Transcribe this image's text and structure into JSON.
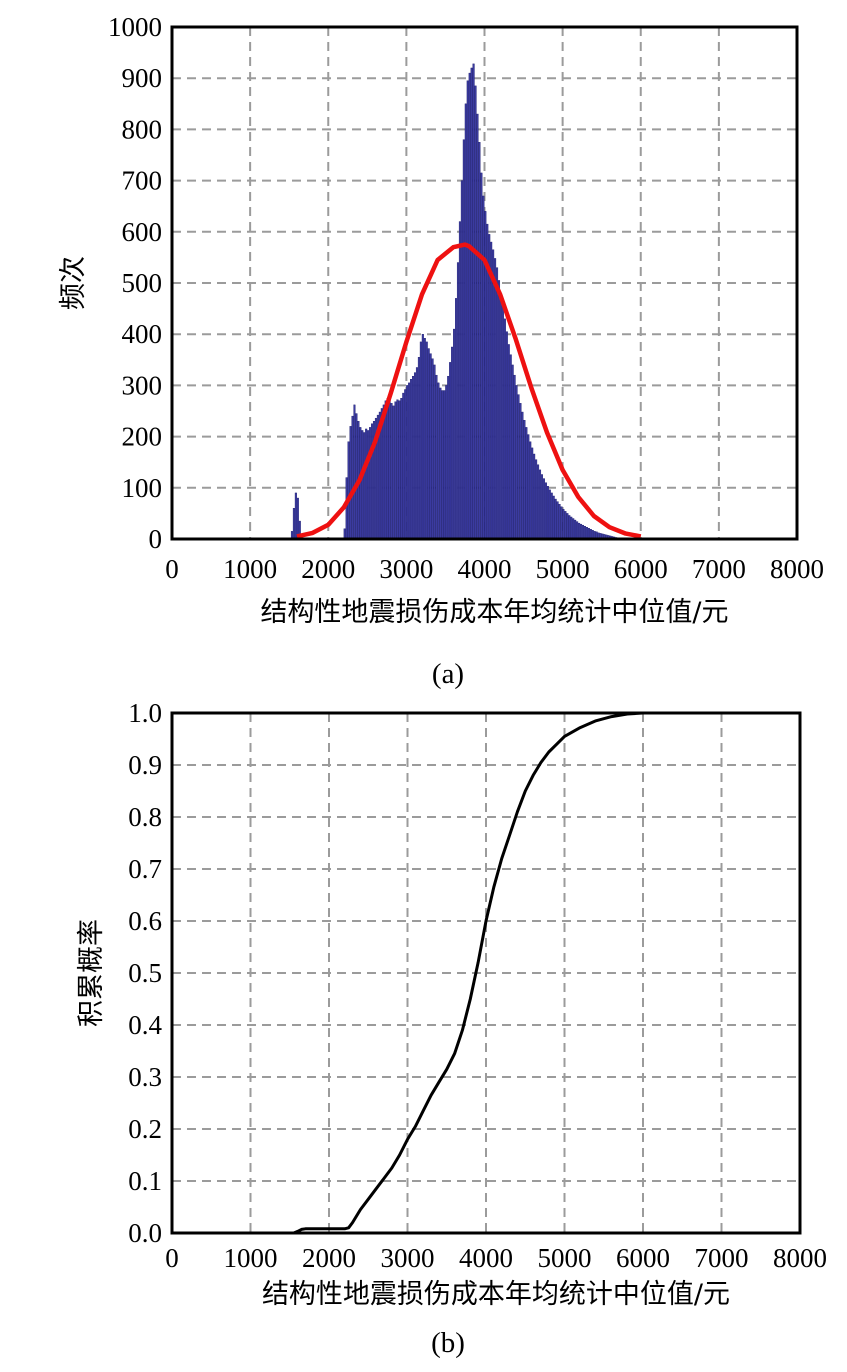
{
  "chart_data": [
    {
      "type": "bar",
      "panel_label": "(a)",
      "xlabel": "结构性地震损伤成本年均统计中位值/元",
      "ylabel": "频次",
      "xlim": [
        0,
        8000
      ],
      "ylim": [
        0,
        1000
      ],
      "xticks": [
        "0",
        "1000",
        "2000",
        "3000",
        "4000",
        "5000",
        "6000",
        "7000",
        "8000"
      ],
      "yticks": [
        "0",
        "100",
        "200",
        "300",
        "400",
        "500",
        "600",
        "700",
        "800",
        "900",
        "1000"
      ],
      "grid": true,
      "colors": {
        "bars": "#3b3ba0",
        "fit_curve": "#ee1111"
      },
      "histogram": {
        "bin_width": 25,
        "bins": [
          {
            "x": 1525,
            "y": 15
          },
          {
            "x": 1550,
            "y": 60
          },
          {
            "x": 1575,
            "y": 90
          },
          {
            "x": 1600,
            "y": 80
          },
          {
            "x": 1625,
            "y": 35
          },
          {
            "x": 2200,
            "y": 20
          },
          {
            "x": 2225,
            "y": 120
          },
          {
            "x": 2250,
            "y": 190
          },
          {
            "x": 2275,
            "y": 220
          },
          {
            "x": 2300,
            "y": 240
          },
          {
            "x": 2325,
            "y": 262
          },
          {
            "x": 2350,
            "y": 245
          },
          {
            "x": 2375,
            "y": 230
          },
          {
            "x": 2400,
            "y": 218
          },
          {
            "x": 2425,
            "y": 212
          },
          {
            "x": 2450,
            "y": 208
          },
          {
            "x": 2475,
            "y": 215
          },
          {
            "x": 2500,
            "y": 212
          },
          {
            "x": 2525,
            "y": 218
          },
          {
            "x": 2550,
            "y": 225
          },
          {
            "x": 2575,
            "y": 230
          },
          {
            "x": 2600,
            "y": 236
          },
          {
            "x": 2625,
            "y": 242
          },
          {
            "x": 2650,
            "y": 248
          },
          {
            "x": 2675,
            "y": 255
          },
          {
            "x": 2700,
            "y": 262
          },
          {
            "x": 2725,
            "y": 270
          },
          {
            "x": 2750,
            "y": 275
          },
          {
            "x": 2775,
            "y": 272
          },
          {
            "x": 2800,
            "y": 265
          },
          {
            "x": 2825,
            "y": 260
          },
          {
            "x": 2850,
            "y": 268
          },
          {
            "x": 2875,
            "y": 272
          },
          {
            "x": 2900,
            "y": 270
          },
          {
            "x": 2925,
            "y": 275
          },
          {
            "x": 2950,
            "y": 285
          },
          {
            "x": 2975,
            "y": 292
          },
          {
            "x": 3000,
            "y": 300
          },
          {
            "x": 3025,
            "y": 305
          },
          {
            "x": 3050,
            "y": 312
          },
          {
            "x": 3075,
            "y": 318
          },
          {
            "x": 3100,
            "y": 325
          },
          {
            "x": 3125,
            "y": 335
          },
          {
            "x": 3150,
            "y": 355
          },
          {
            "x": 3175,
            "y": 385
          },
          {
            "x": 3200,
            "y": 400
          },
          {
            "x": 3225,
            "y": 392
          },
          {
            "x": 3250,
            "y": 385
          },
          {
            "x": 3275,
            "y": 372
          },
          {
            "x": 3300,
            "y": 362
          },
          {
            "x": 3325,
            "y": 352
          },
          {
            "x": 3350,
            "y": 340
          },
          {
            "x": 3375,
            "y": 320
          },
          {
            "x": 3400,
            "y": 305
          },
          {
            "x": 3425,
            "y": 295
          },
          {
            "x": 3450,
            "y": 290
          },
          {
            "x": 3475,
            "y": 290
          },
          {
            "x": 3500,
            "y": 300
          },
          {
            "x": 3525,
            "y": 318
          },
          {
            "x": 3550,
            "y": 345
          },
          {
            "x": 3575,
            "y": 375
          },
          {
            "x": 3600,
            "y": 410
          },
          {
            "x": 3625,
            "y": 470
          },
          {
            "x": 3650,
            "y": 540
          },
          {
            "x": 3675,
            "y": 620
          },
          {
            "x": 3700,
            "y": 700
          },
          {
            "x": 3725,
            "y": 780
          },
          {
            "x": 3750,
            "y": 850
          },
          {
            "x": 3775,
            "y": 895
          },
          {
            "x": 3800,
            "y": 910
          },
          {
            "x": 3825,
            "y": 920
          },
          {
            "x": 3850,
            "y": 928
          },
          {
            "x": 3875,
            "y": 885
          },
          {
            "x": 3900,
            "y": 830
          },
          {
            "x": 3925,
            "y": 775
          },
          {
            "x": 3950,
            "y": 715
          },
          {
            "x": 3975,
            "y": 670
          },
          {
            "x": 4000,
            "y": 640
          },
          {
            "x": 4025,
            "y": 615
          },
          {
            "x": 4050,
            "y": 595
          },
          {
            "x": 4075,
            "y": 580
          },
          {
            "x": 4100,
            "y": 565
          },
          {
            "x": 4125,
            "y": 548
          },
          {
            "x": 4150,
            "y": 530
          },
          {
            "x": 4175,
            "y": 505
          },
          {
            "x": 4200,
            "y": 480
          },
          {
            "x": 4225,
            "y": 455
          },
          {
            "x": 4250,
            "y": 430
          },
          {
            "x": 4275,
            "y": 405
          },
          {
            "x": 4300,
            "y": 380
          },
          {
            "x": 4325,
            "y": 360
          },
          {
            "x": 4350,
            "y": 340
          },
          {
            "x": 4375,
            "y": 320
          },
          {
            "x": 4400,
            "y": 300
          },
          {
            "x": 4425,
            "y": 282
          },
          {
            "x": 4450,
            "y": 265
          },
          {
            "x": 4475,
            "y": 248
          },
          {
            "x": 4500,
            "y": 232
          },
          {
            "x": 4525,
            "y": 218
          },
          {
            "x": 4550,
            "y": 204
          },
          {
            "x": 4575,
            "y": 190
          },
          {
            "x": 4600,
            "y": 178
          },
          {
            "x": 4625,
            "y": 166
          },
          {
            "x": 4650,
            "y": 155
          },
          {
            "x": 4675,
            "y": 145
          },
          {
            "x": 4700,
            "y": 135
          },
          {
            "x": 4725,
            "y": 126
          },
          {
            "x": 4750,
            "y": 118
          },
          {
            "x": 4775,
            "y": 110
          },
          {
            "x": 4800,
            "y": 103
          },
          {
            "x": 4825,
            "y": 96
          },
          {
            "x": 4850,
            "y": 90
          },
          {
            "x": 4875,
            "y": 84
          },
          {
            "x": 4900,
            "y": 78
          },
          {
            "x": 4925,
            "y": 73
          },
          {
            "x": 4950,
            "y": 68
          },
          {
            "x": 4975,
            "y": 63
          },
          {
            "x": 5000,
            "y": 58
          },
          {
            "x": 5025,
            "y": 54
          },
          {
            "x": 5050,
            "y": 50
          },
          {
            "x": 5075,
            "y": 46
          },
          {
            "x": 5100,
            "y": 43
          },
          {
            "x": 5125,
            "y": 40
          },
          {
            "x": 5150,
            "y": 37
          },
          {
            "x": 5175,
            "y": 34
          },
          {
            "x": 5200,
            "y": 31
          },
          {
            "x": 5225,
            "y": 29
          },
          {
            "x": 5250,
            "y": 27
          },
          {
            "x": 5275,
            "y": 25
          },
          {
            "x": 5300,
            "y": 23
          },
          {
            "x": 5325,
            "y": 21
          },
          {
            "x": 5350,
            "y": 19
          },
          {
            "x": 5375,
            "y": 17
          },
          {
            "x": 5400,
            "y": 15
          },
          {
            "x": 5425,
            "y": 14
          },
          {
            "x": 5450,
            "y": 12
          },
          {
            "x": 5475,
            "y": 11
          },
          {
            "x": 5500,
            "y": 10
          },
          {
            "x": 5525,
            "y": 9
          },
          {
            "x": 5550,
            "y": 8
          },
          {
            "x": 5575,
            "y": 7
          },
          {
            "x": 5600,
            "y": 6
          },
          {
            "x": 5625,
            "y": 5
          },
          {
            "x": 5650,
            "y": 4
          },
          {
            "x": 5675,
            "y": 3
          },
          {
            "x": 5700,
            "y": 2
          }
        ]
      },
      "fit_curve": {
        "x": [
          1600,
          1800,
          2000,
          2200,
          2400,
          2600,
          2800,
          3000,
          3200,
          3400,
          3600,
          3750,
          3800,
          4000,
          4200,
          4400,
          4600,
          4800,
          5000,
          5200,
          5400,
          5600,
          5800,
          6000
        ],
        "y": [
          5,
          12,
          28,
          62,
          115,
          190,
          285,
          385,
          478,
          545,
          570,
          575,
          572,
          545,
          478,
          390,
          295,
          208,
          135,
          82,
          45,
          23,
          11,
          5
        ]
      }
    },
    {
      "type": "line",
      "panel_label": "(b)",
      "xlabel": "结构性地震损伤成本年均统计中位值/元",
      "ylabel": "积累概率",
      "xlim": [
        0,
        8000
      ],
      "ylim": [
        0,
        1.0
      ],
      "xticks": [
        "0",
        "1000",
        "2000",
        "3000",
        "4000",
        "5000",
        "6000",
        "7000",
        "8000"
      ],
      "yticks": [
        "0.0",
        "0.1",
        "0.2",
        "0.3",
        "0.4",
        "0.5",
        "0.6",
        "0.7",
        "0.8",
        "0.9",
        "1.0"
      ],
      "grid": true,
      "colors": {
        "line": "#000000"
      },
      "series": [
        {
          "x": [
            1550,
            1600,
            1650,
            1700,
            2200,
            2250,
            2300,
            2400,
            2500,
            2600,
            2700,
            2800,
            2900,
            3000,
            3100,
            3200,
            3300,
            3400,
            3500,
            3600,
            3700,
            3800,
            3900,
            4000,
            4100,
            4200,
            4300,
            4400,
            4500,
            4600,
            4700,
            4800,
            4900,
            5000,
            5200,
            5400,
            5600,
            5800,
            6000
          ],
          "y": [
            0,
            0.003,
            0.007,
            0.008,
            0.008,
            0.01,
            0.02,
            0.045,
            0.065,
            0.085,
            0.105,
            0.125,
            0.15,
            0.18,
            0.205,
            0.235,
            0.265,
            0.29,
            0.315,
            0.345,
            0.39,
            0.45,
            0.52,
            0.6,
            0.665,
            0.72,
            0.765,
            0.81,
            0.85,
            0.88,
            0.905,
            0.925,
            0.94,
            0.955,
            0.972,
            0.985,
            0.993,
            0.998,
            1.0
          ]
        }
      ]
    }
  ]
}
